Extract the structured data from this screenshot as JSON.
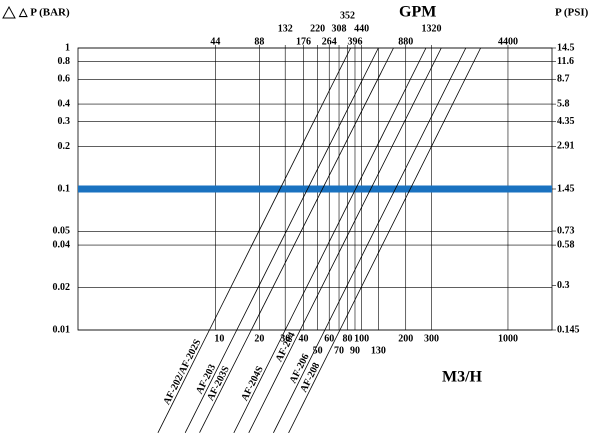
{
  "chart_data": {
    "type": "line",
    "y_label": "△ P (BAR)",
    "y2_label": "P (PSI)",
    "x_label": "M3/H",
    "x2_label": "GPM",
    "xscale": "log",
    "yscale": "log",
    "xlim": [
      1.15,
      2000
    ],
    "xticks": [
      10,
      20,
      30,
      40,
      50,
      60,
      70,
      80,
      90,
      100,
      130,
      200,
      300,
      1000
    ],
    "x2lim": [
      5.06,
      8800
    ],
    "x2ticks": [
      44,
      88,
      132,
      176,
      220,
      264,
      308,
      352,
      396,
      440,
      880,
      1320,
      4400
    ],
    "ylim": [
      0.01,
      1
    ],
    "yticks": [
      1,
      0.8,
      0.6,
      0.4,
      0.3,
      0.2,
      0.1,
      0.05,
      0.04,
      0.02,
      0.01
    ],
    "y2lim": [
      0.145,
      14.5
    ],
    "y2ticks": [
      14.5,
      11.6,
      8.7,
      5.8,
      4.35,
      2.91,
      1.45,
      0.73,
      0.58,
      0.3,
      0.145
    ],
    "grid": true,
    "reference_line": {
      "value": 0.1,
      "color": "#1a72c0"
    },
    "series": [
      {
        "name": "AF-202/AF-202S",
        "color": "#000000",
        "x": [
          9.1,
          84
        ],
        "values": [
          0.01,
          1
        ]
      },
      {
        "name": "AF-203",
        "color": "#000000",
        "x": [
          14,
          130
        ],
        "values": [
          0.01,
          1
        ]
      },
      {
        "name": "AF-203S",
        "color": "#000000",
        "x": [
          17.6,
          165
        ],
        "values": [
          0.01,
          1
        ]
      },
      {
        "name": "AF-204S",
        "color": "#000000",
        "x": [
          30,
          275
        ],
        "values": [
          0.01,
          1
        ]
      },
      {
        "name": "AF-204",
        "color": "#000000",
        "x": [
          38,
          350
        ],
        "values": [
          0.01,
          1
        ]
      },
      {
        "name": "AF-206",
        "color": "#000000",
        "x": [
          56,
          515
        ],
        "values": [
          0.01,
          1
        ]
      },
      {
        "name": "AF-208",
        "color": "#000000",
        "x": [
          71,
          650
        ],
        "values": [
          0.01,
          1
        ]
      }
    ]
  }
}
